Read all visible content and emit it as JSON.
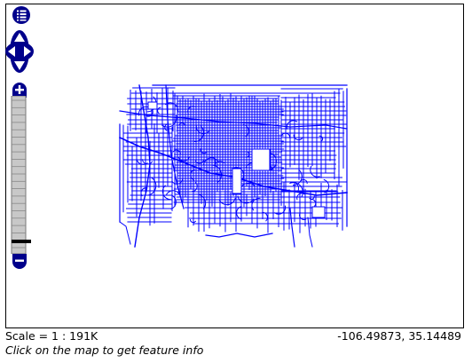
{
  "map": {
    "road_color": "#0000ff",
    "control_color": "#00008b",
    "zoom_level": 0.05
  },
  "controls": {
    "layer_switcher_icon": "layer-list-icon",
    "pan_icon": "pan-arrows-icon",
    "zoom_in_icon": "plus-icon",
    "zoom_out_icon": "minus-icon"
  },
  "status": {
    "scale": "Scale = 1 : 191K",
    "coordinates": "-106.49873, 35.14489",
    "info": "Click on the map to get feature info"
  }
}
